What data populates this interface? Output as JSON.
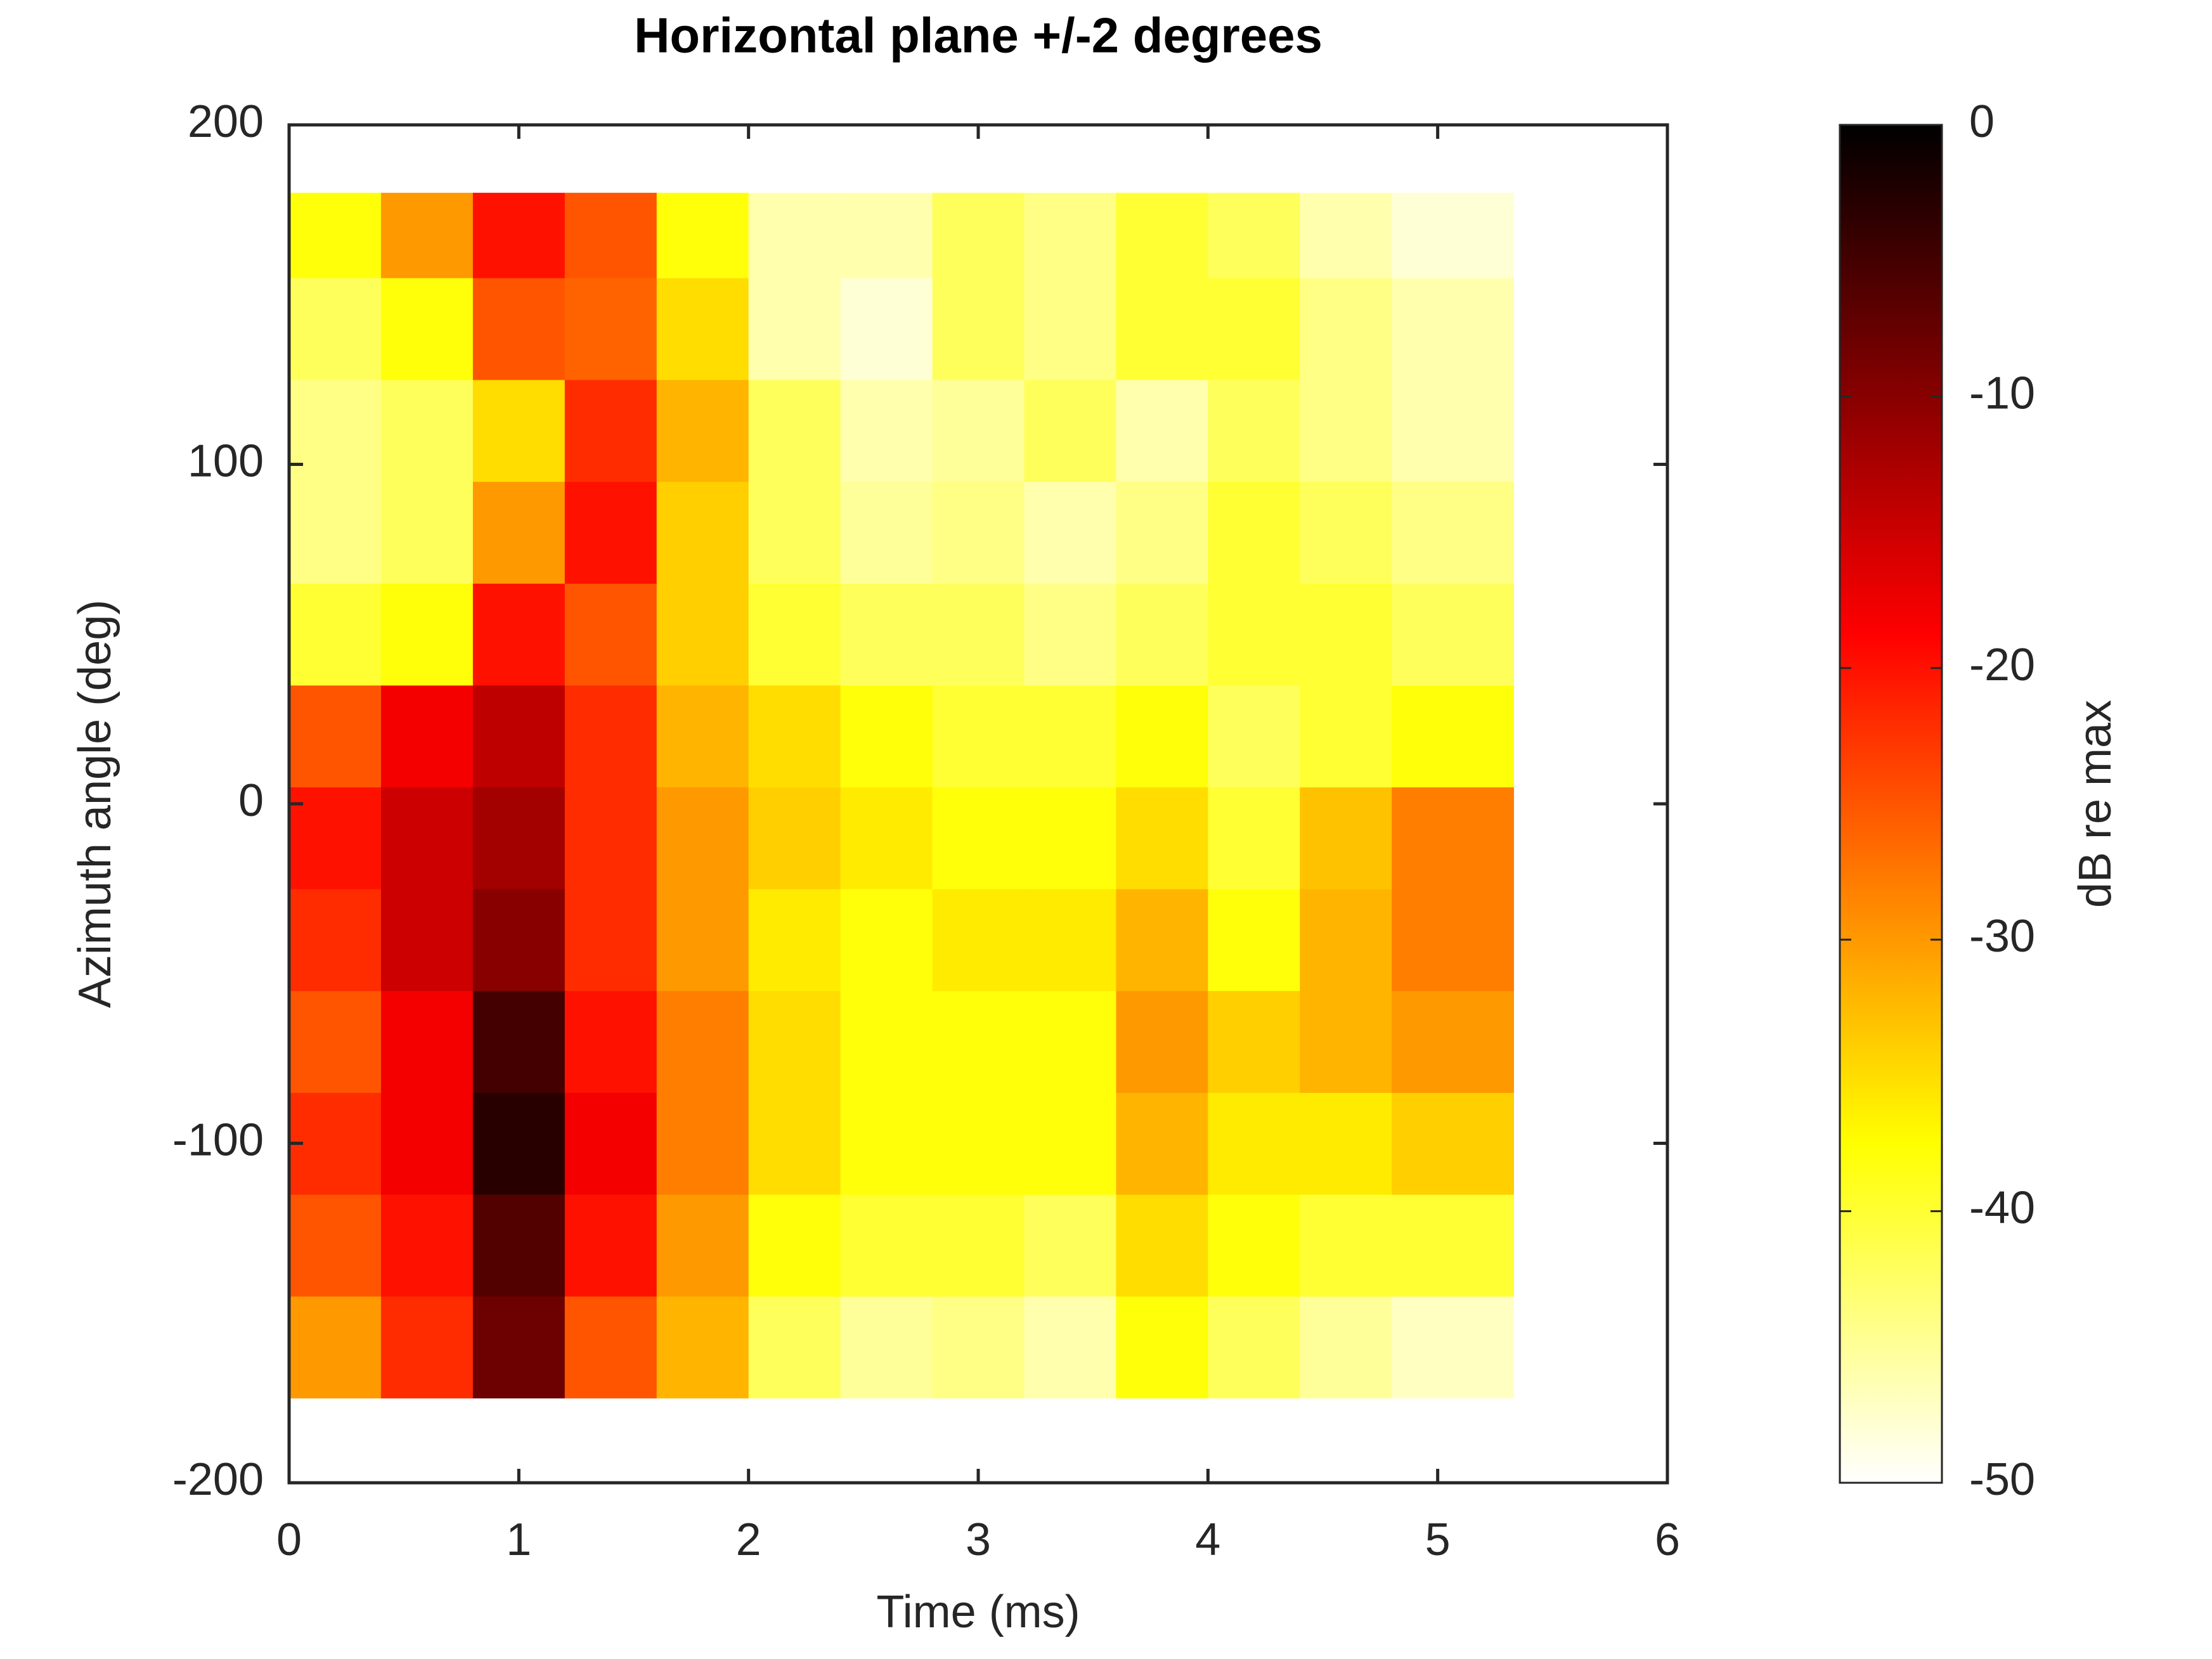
{
  "chart_data": {
    "type": "heatmap",
    "title": "Horizontal plane +/-2 degrees",
    "xlabel": "Time (ms)",
    "ylabel": "Azimuth angle (deg)",
    "xlim": [
      0,
      6
    ],
    "xticks": [
      0,
      1,
      2,
      3,
      4,
      5,
      6
    ],
    "ylim": [
      -200,
      200
    ],
    "yticks": [
      -200,
      -100,
      0,
      100,
      200
    ],
    "xbins": [
      0,
      0.4,
      0.8,
      1.2,
      1.6,
      2.0,
      2.4,
      2.8,
      3.2,
      3.6,
      4.0,
      4.4,
      4.8,
      5.33
    ],
    "ybins": [
      -175,
      -145,
      -115,
      -85,
      -55,
      -25,
      5,
      35,
      65,
      95,
      125,
      155,
      180
    ],
    "z": [
      [
        -30,
        -22,
        -8,
        -25,
        -32,
        -42,
        -45,
        -44,
        -46,
        -38,
        -42,
        -45,
        -47
      ],
      [
        -25,
        -20,
        -6,
        -20,
        -30,
        -38,
        -40,
        -40,
        -42,
        -35,
        -38,
        -40,
        -40
      ],
      [
        -22,
        -18,
        -3,
        -18,
        -28,
        -35,
        -38,
        -38,
        -38,
        -32,
        -36,
        -36,
        -34
      ],
      [
        -25,
        -18,
        -5,
        -20,
        -28,
        -35,
        -38,
        -38,
        -38,
        -30,
        -34,
        -32,
        -30
      ],
      [
        -22,
        -15,
        -10,
        -22,
        -30,
        -36,
        -38,
        -36,
        -36,
        -32,
        -38,
        -32,
        -28
      ],
      [
        -20,
        -15,
        -12,
        -22,
        -30,
        -34,
        -36,
        -38,
        -38,
        -35,
        -40,
        -33,
        -28
      ],
      [
        -25,
        -18,
        -14,
        -22,
        -32,
        -35,
        -38,
        -40,
        -40,
        -38,
        -42,
        -40,
        -38
      ],
      [
        -40,
        -38,
        -20,
        -25,
        -34,
        -40,
        -42,
        -42,
        -44,
        -42,
        -40,
        -40,
        -42
      ],
      [
        -44,
        -42,
        -30,
        -20,
        -34,
        -42,
        -45,
        -44,
        -46,
        -44,
        -40,
        -42,
        -44
      ],
      [
        -44,
        -42,
        -35,
        -22,
        -32,
        -42,
        -46,
        -45,
        -42,
        -46,
        -42,
        -44,
        -46
      ],
      [
        -42,
        -38,
        -25,
        -26,
        -35,
        -46,
        -48,
        -42,
        -44,
        -40,
        -40,
        -44,
        -46
      ],
      [
        -38,
        -30,
        -20,
        -25,
        -38,
        -46,
        -46,
        -42,
        -44,
        -40,
        -42,
        -46,
        -48
      ]
    ],
    "colormap": "hot-reversed",
    "clim": [
      -50,
      0
    ],
    "cticks": [
      0,
      -10,
      -20,
      -30,
      -40,
      -50
    ],
    "clabel": "dB re max"
  }
}
